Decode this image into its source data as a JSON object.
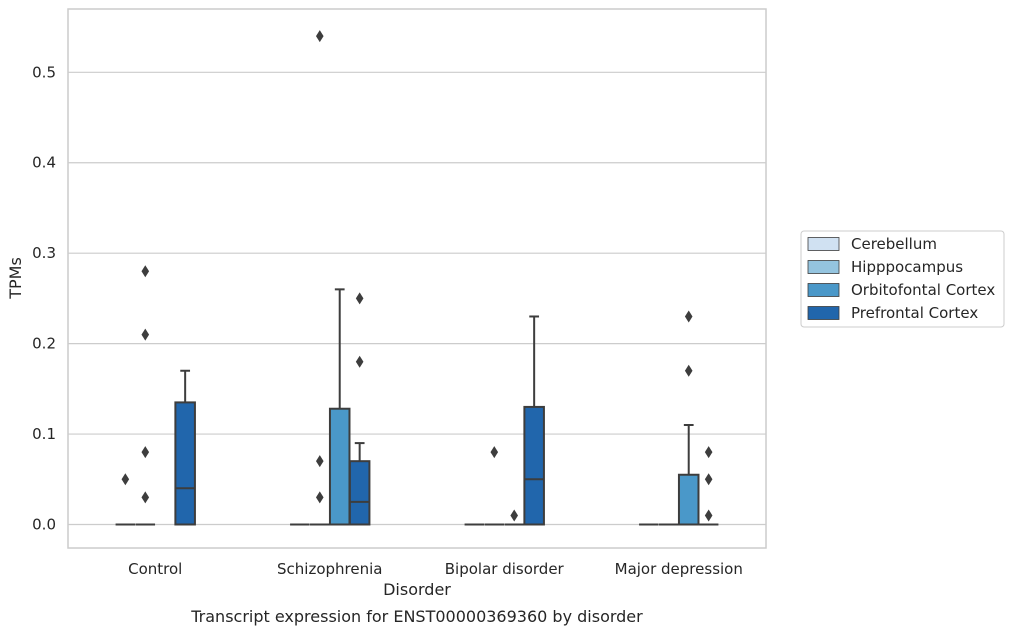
{
  "chart_data": {
    "type": "box",
    "caption": "Transcript expression for ENST00000369360 by disorder",
    "xlabel": "Disorder",
    "ylabel": "TPMs",
    "ylim": [
      -0.026,
      0.57
    ],
    "yticks": [
      0.0,
      0.1,
      0.2,
      0.3,
      0.4,
      0.5
    ],
    "ytick_labels": [
      "0.0",
      "0.1",
      "0.2",
      "0.3",
      "0.4",
      "0.5"
    ],
    "grid": true,
    "legend_position": "right",
    "categories": [
      "Control",
      "Schizophrenia",
      "Bipolar disorder",
      "Major depression"
    ],
    "series": [
      {
        "name": "Cerebellum",
        "color": "#d0e1f2",
        "boxes": [
          {
            "q1": 0,
            "median": 0,
            "q3": 0,
            "whisker_low": 0,
            "whisker_high": 0,
            "outliers": [
              0.05
            ]
          },
          {
            "q1": 0,
            "median": 0,
            "q3": 0,
            "whisker_low": 0,
            "whisker_high": 0,
            "outliers": []
          },
          {
            "q1": 0,
            "median": 0,
            "q3": 0,
            "whisker_low": 0,
            "whisker_high": 0,
            "outliers": []
          },
          {
            "q1": 0,
            "median": 0,
            "q3": 0,
            "whisker_low": 0,
            "whisker_high": 0,
            "outliers": []
          }
        ]
      },
      {
        "name": "Hipppocampus",
        "color": "#94c4df",
        "boxes": [
          {
            "q1": 0,
            "median": 0,
            "q3": 0,
            "whisker_low": 0,
            "whisker_high": 0,
            "outliers": [
              0.03,
              0.08,
              0.21,
              0.28
            ]
          },
          {
            "q1": 0,
            "median": 0,
            "q3": 0,
            "whisker_low": 0,
            "whisker_high": 0,
            "outliers": [
              0.03,
              0.07,
              0.54
            ]
          },
          {
            "q1": 0,
            "median": 0,
            "q3": 0,
            "whisker_low": 0,
            "whisker_high": 0,
            "outliers": [
              0.08
            ]
          },
          {
            "q1": 0,
            "median": 0,
            "q3": 0,
            "whisker_low": 0,
            "whisker_high": 0,
            "outliers": []
          }
        ]
      },
      {
        "name": "Orbitofontal Cortex",
        "color": "#4a98c9",
        "boxes": [
          null,
          {
            "q1": 0,
            "median": 0,
            "q3": 0.128,
            "whisker_low": 0,
            "whisker_high": 0.26,
            "outliers": []
          },
          {
            "q1": 0,
            "median": 0,
            "q3": 0,
            "whisker_low": 0,
            "whisker_high": 0,
            "outliers": [
              0.01
            ]
          },
          {
            "q1": 0,
            "median": 0,
            "q3": 0.055,
            "whisker_low": 0,
            "whisker_high": 0.11,
            "outliers": [
              0.17,
              0.23
            ]
          }
        ]
      },
      {
        "name": "Prefrontal Cortex",
        "color": "#2166ac",
        "boxes": [
          {
            "q1": 0,
            "median": 0.04,
            "q3": 0.135,
            "whisker_low": 0,
            "whisker_high": 0.17,
            "outliers": []
          },
          {
            "q1": 0,
            "median": 0.025,
            "q3": 0.07,
            "whisker_low": 0,
            "whisker_high": 0.09,
            "outliers": [
              0.18,
              0.25
            ]
          },
          {
            "q1": 0,
            "median": 0.05,
            "q3": 0.13,
            "whisker_low": 0,
            "whisker_high": 0.23,
            "outliers": []
          },
          {
            "q1": 0,
            "median": 0,
            "q3": 0,
            "whisker_low": 0,
            "whisker_high": 0,
            "outliers": [
              0.01,
              0.05,
              0.08
            ]
          }
        ]
      }
    ]
  }
}
